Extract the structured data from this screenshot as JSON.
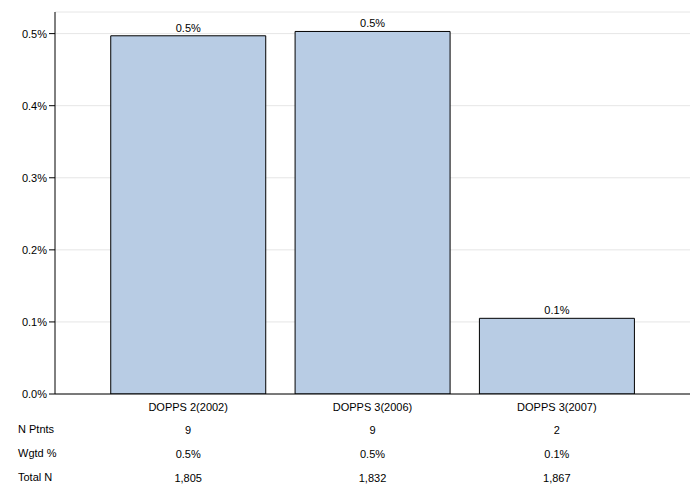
{
  "chart_data": {
    "type": "bar",
    "categories": [
      "DOPPS 2(2002)",
      "DOPPS 3(2006)",
      "DOPPS 3(2007)"
    ],
    "values": [
      0.497,
      0.503,
      0.105
    ],
    "value_labels": [
      "0.5%",
      "0.5%",
      "0.1%"
    ],
    "data_labels": true,
    "color": "#b8cce4",
    "ylim": [
      0,
      0.53
    ],
    "yticks": [
      {
        "value": 0,
        "label": "0.0%"
      },
      {
        "value": 0.1,
        "label": "0.1%"
      },
      {
        "value": 0.2,
        "label": "0.2%"
      },
      {
        "value": 0.3,
        "label": "0.3%"
      },
      {
        "value": 0.4,
        "label": "0.4%"
      },
      {
        "value": 0.5,
        "label": "0.5%"
      }
    ],
    "grid": true,
    "table_rows": [
      {
        "label": "N Ptnts",
        "cells": [
          "9",
          "9",
          "2"
        ]
      },
      {
        "label": "Wgtd %",
        "cells": [
          "0.5%",
          "0.5%",
          "0.1%"
        ]
      },
      {
        "label": "Total N",
        "cells": [
          "1,805",
          "1,832",
          "1,867"
        ]
      }
    ]
  }
}
